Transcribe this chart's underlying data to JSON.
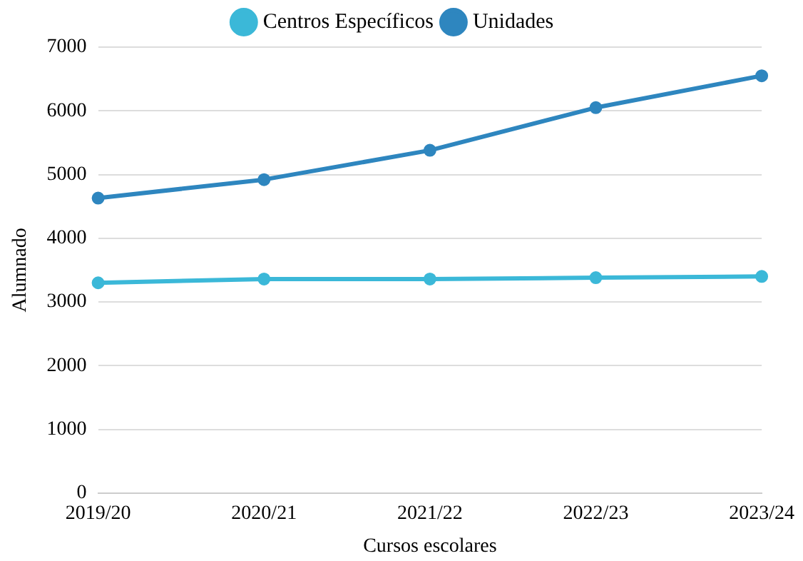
{
  "chart_data": {
    "type": "line",
    "xlabel": "Cursos escolares",
    "ylabel": "Alumnado",
    "categories": [
      "2019/20",
      "2020/21",
      "2021/22",
      "2022/23",
      "2023/24"
    ],
    "series": [
      {
        "name": "Centros Específicos",
        "color": "#3bb8d8",
        "values": [
          3300,
          3360,
          3360,
          3380,
          3400
        ]
      },
      {
        "name": "Unidades",
        "color": "#2e86bf",
        "values": [
          4630,
          4920,
          5380,
          6050,
          6550
        ]
      }
    ],
    "ylim": [
      0,
      7000
    ],
    "yticks": [
      0,
      1000,
      2000,
      3000,
      4000,
      5000,
      6000,
      7000
    ],
    "grid": "y",
    "legend": "top",
    "marker": "circle",
    "line_style": "solid"
  }
}
